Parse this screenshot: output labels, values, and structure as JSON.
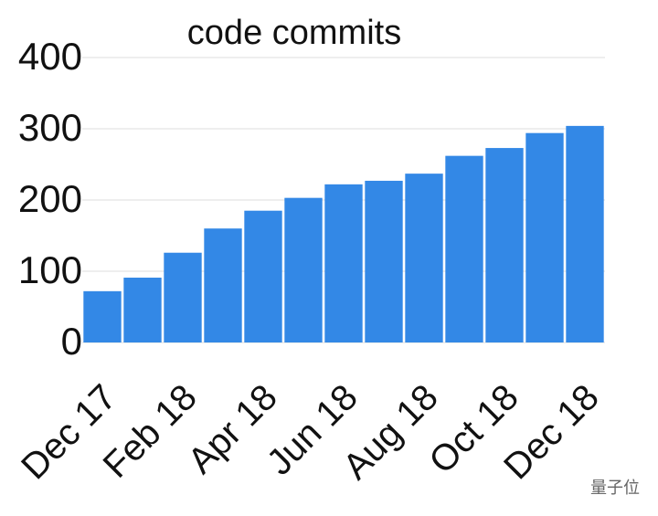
{
  "chart_data": {
    "type": "bar",
    "title": "code commits",
    "categories": [
      "Dec 17",
      null,
      "Feb 18",
      null,
      "Apr 18",
      null,
      "Jun 18",
      null,
      "Aug 18",
      null,
      "Oct 18",
      null,
      "Dec 18"
    ],
    "values": [
      72,
      91,
      126,
      160,
      185,
      203,
      222,
      227,
      237,
      262,
      273,
      294,
      304
    ],
    "color": "#3388e6",
    "ylim": [
      0,
      400
    ],
    "yticks": [
      0,
      100,
      200,
      300,
      400
    ],
    "grid": true
  },
  "watermark": "量子位"
}
